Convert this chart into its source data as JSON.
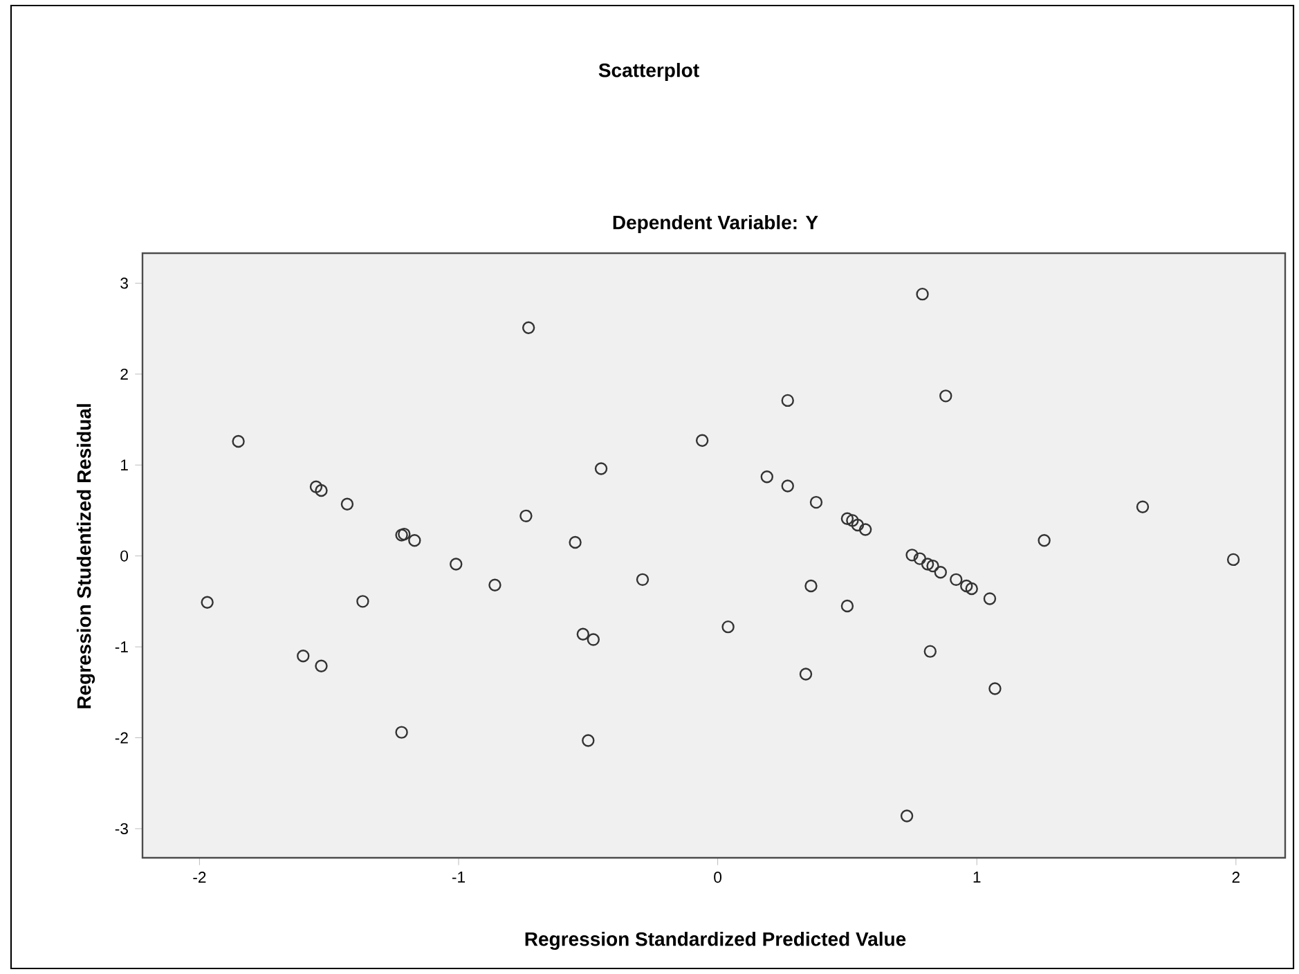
{
  "chart_data": {
    "type": "scatter",
    "title": "Scatterplot",
    "subtitle": "Dependent Variable: Y",
    "xlabel": "Regression Standardized Predicted Value",
    "ylabel": "Regression Studentized Residual",
    "x": [
      -0.73,
      -1.85,
      -0.45,
      -0.06,
      -1.55,
      -1.53,
      -1.43,
      -0.74,
      -1.22,
      -1.21,
      -1.17,
      -0.55,
      -1.01,
      -0.86,
      -0.29,
      -1.97,
      -1.37,
      -0.52,
      -0.48,
      -1.6,
      -1.53,
      -1.22,
      -0.5,
      0.79,
      0.88,
      0.27,
      0.19,
      0.27,
      0.38,
      0.5,
      0.52,
      0.54,
      0.57,
      1.64,
      1.26,
      1.99,
      0.75,
      0.78,
      0.81,
      0.83,
      0.86,
      0.92,
      0.96,
      0.98,
      1.05,
      0.36,
      0.5,
      0.04,
      0.82,
      0.34,
      1.07,
      0.73
    ],
    "values": [
      2.51,
      1.26,
      0.96,
      1.27,
      0.76,
      0.72,
      0.57,
      0.44,
      0.23,
      0.24,
      0.17,
      0.15,
      -0.09,
      -0.32,
      -0.26,
      -0.51,
      -0.5,
      -0.86,
      -0.92,
      -1.1,
      -1.21,
      -1.94,
      -2.03,
      2.88,
      1.76,
      1.71,
      0.87,
      0.77,
      0.59,
      0.41,
      0.39,
      0.34,
      0.29,
      0.54,
      0.17,
      -0.04,
      0.01,
      -0.03,
      -0.09,
      -0.11,
      -0.18,
      -0.26,
      -0.33,
      -0.36,
      -0.47,
      -0.33,
      -0.55,
      -0.78,
      -1.05,
      -1.3,
      -1.46,
      -2.86
    ],
    "color": "#333333",
    "marker": "circle",
    "grid": false,
    "xlim": [
      -2.22,
      2.19
    ],
    "ylim": [
      -3.32,
      3.33
    ],
    "xticks": [
      -2,
      -1,
      0,
      1,
      2
    ],
    "yticks": [
      -3,
      -2,
      -1,
      0,
      1,
      2,
      3
    ]
  }
}
